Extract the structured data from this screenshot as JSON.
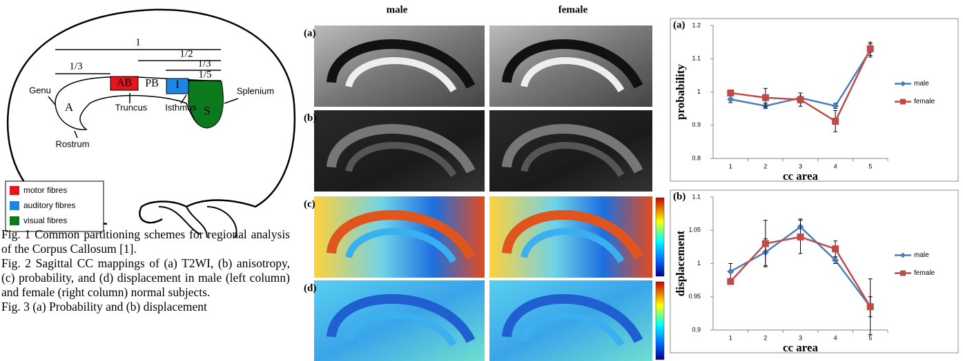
{
  "diagram": {
    "measures": [
      "1",
      "1/2",
      "1/3",
      "1/3",
      "1/5"
    ],
    "regions": [
      "A",
      "AB",
      "PB",
      "I",
      "S"
    ],
    "labels": [
      "Genu",
      "Truncus",
      "Isthmus",
      "Splenium",
      "Rostrum"
    ],
    "legend": [
      "motor fibres",
      "auditory fibres",
      "visual fibres"
    ]
  },
  "figure2": {
    "columns": [
      "male",
      "female"
    ],
    "rows": [
      "(a)",
      "(b)",
      "(c)",
      "(d)"
    ]
  },
  "caption": [
    "Fig. 1 Common partitioning schemes for regional analysis of the Corpus Callosum [1].",
    "Fig. 2 Sagittal CC mappings of (a) T2WI, (b) anisotropy, (c) probability, and (d) displacement in male (left column) and female (right column) normal subjects.",
    "Fig. 3 (a) Probability and (b) displacement"
  ],
  "chart_data": [
    {
      "type": "line",
      "panel": "(a)",
      "y_label": "probability",
      "x_label": "cc area",
      "categories": [
        "1",
        "2",
        "3",
        "4",
        "5"
      ],
      "ylim": [
        0.8,
        1.2
      ],
      "yticks": [
        0.8,
        0.9,
        1,
        1.1,
        1.2
      ],
      "grid": false,
      "legend": "right",
      "series": [
        {
          "name": "male",
          "color": "#4a7ebb",
          "marker": "diamond",
          "values": [
            0.978,
            0.958,
            0.982,
            0.958,
            1.125
          ],
          "errors": [
            0.01,
            0.008,
            0.015,
            0.008,
            0.02
          ]
        },
        {
          "name": "female",
          "color": "#be4b48",
          "marker": "square",
          "values": [
            0.997,
            0.983,
            0.977,
            0.912,
            1.13
          ],
          "errors": [
            0.005,
            0.028,
            0.02,
            0.032,
            0.02
          ]
        }
      ]
    },
    {
      "type": "line",
      "panel": "(b)",
      "y_label": "displacement",
      "x_label": "cc area",
      "categories": [
        "1",
        "2",
        "3",
        "4",
        "5"
      ],
      "ylim": [
        0.9,
        1.1
      ],
      "yticks": [
        0.9,
        0.95,
        1,
        1.05,
        1.1
      ],
      "grid": false,
      "legend": "right",
      "series": [
        {
          "name": "male",
          "color": "#4a7ebb",
          "marker": "diamond",
          "values": [
            0.988,
            1.017,
            1.055,
            1.005,
            0.935
          ],
          "errors": [
            0.012,
            0.02,
            0.012,
            0.005,
            0.015
          ]
        },
        {
          "name": "female",
          "color": "#be4b48",
          "marker": "square",
          "values": [
            0.973,
            1.03,
            1.04,
            1.022,
            0.935
          ],
          "errors": [
            0.003,
            0.035,
            0.025,
            0.012,
            0.042
          ]
        }
      ]
    }
  ]
}
